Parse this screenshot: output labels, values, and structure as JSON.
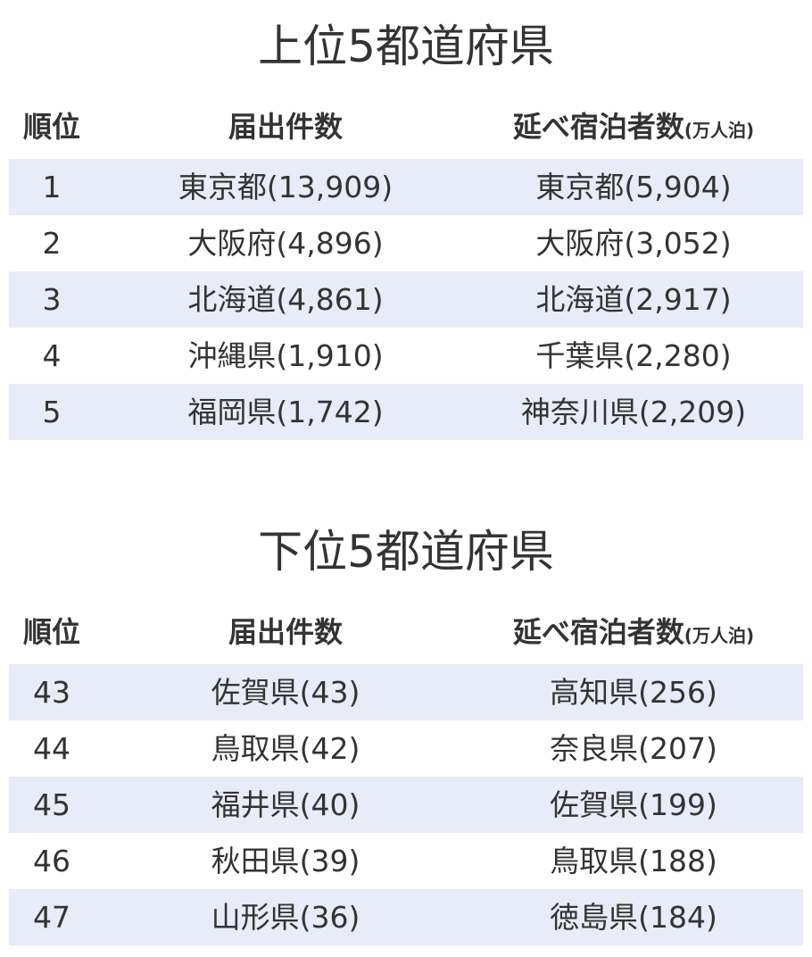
{
  "headers": {
    "rank": "順位",
    "count": "届出件数",
    "nights": "延べ宿泊者数",
    "unit": "(万人泊)"
  },
  "top": {
    "title": "上位5都道府県",
    "rows": [
      {
        "rank": "1",
        "count": "東京都(13,909)",
        "nights": "東京都(5,904)"
      },
      {
        "rank": "2",
        "count": "大阪府(4,896)",
        "nights": "大阪府(3,052)"
      },
      {
        "rank": "3",
        "count": "北海道(4,861)",
        "nights": "北海道(2,917)"
      },
      {
        "rank": "4",
        "count": "沖縄県(1,910)",
        "nights": "千葉県(2,280)"
      },
      {
        "rank": "5",
        "count": "福岡県(1,742)",
        "nights": "神奈川県(2,209)"
      }
    ]
  },
  "bottom": {
    "title": "下位5都道府県",
    "rows": [
      {
        "rank": "43",
        "count": "佐賀県(43)",
        "nights": "高知県(256)"
      },
      {
        "rank": "44",
        "count": "鳥取県(42)",
        "nights": "奈良県(207)"
      },
      {
        "rank": "45",
        "count": "福井県(40)",
        "nights": "佐賀県(199)"
      },
      {
        "rank": "46",
        "count": "秋田県(39)",
        "nights": "鳥取県(188)"
      },
      {
        "rank": "47",
        "count": "山形県(36)",
        "nights": "徳島県(184)"
      }
    ]
  },
  "colors": {
    "stripe": "#e8ebf8",
    "text": "#333333"
  }
}
